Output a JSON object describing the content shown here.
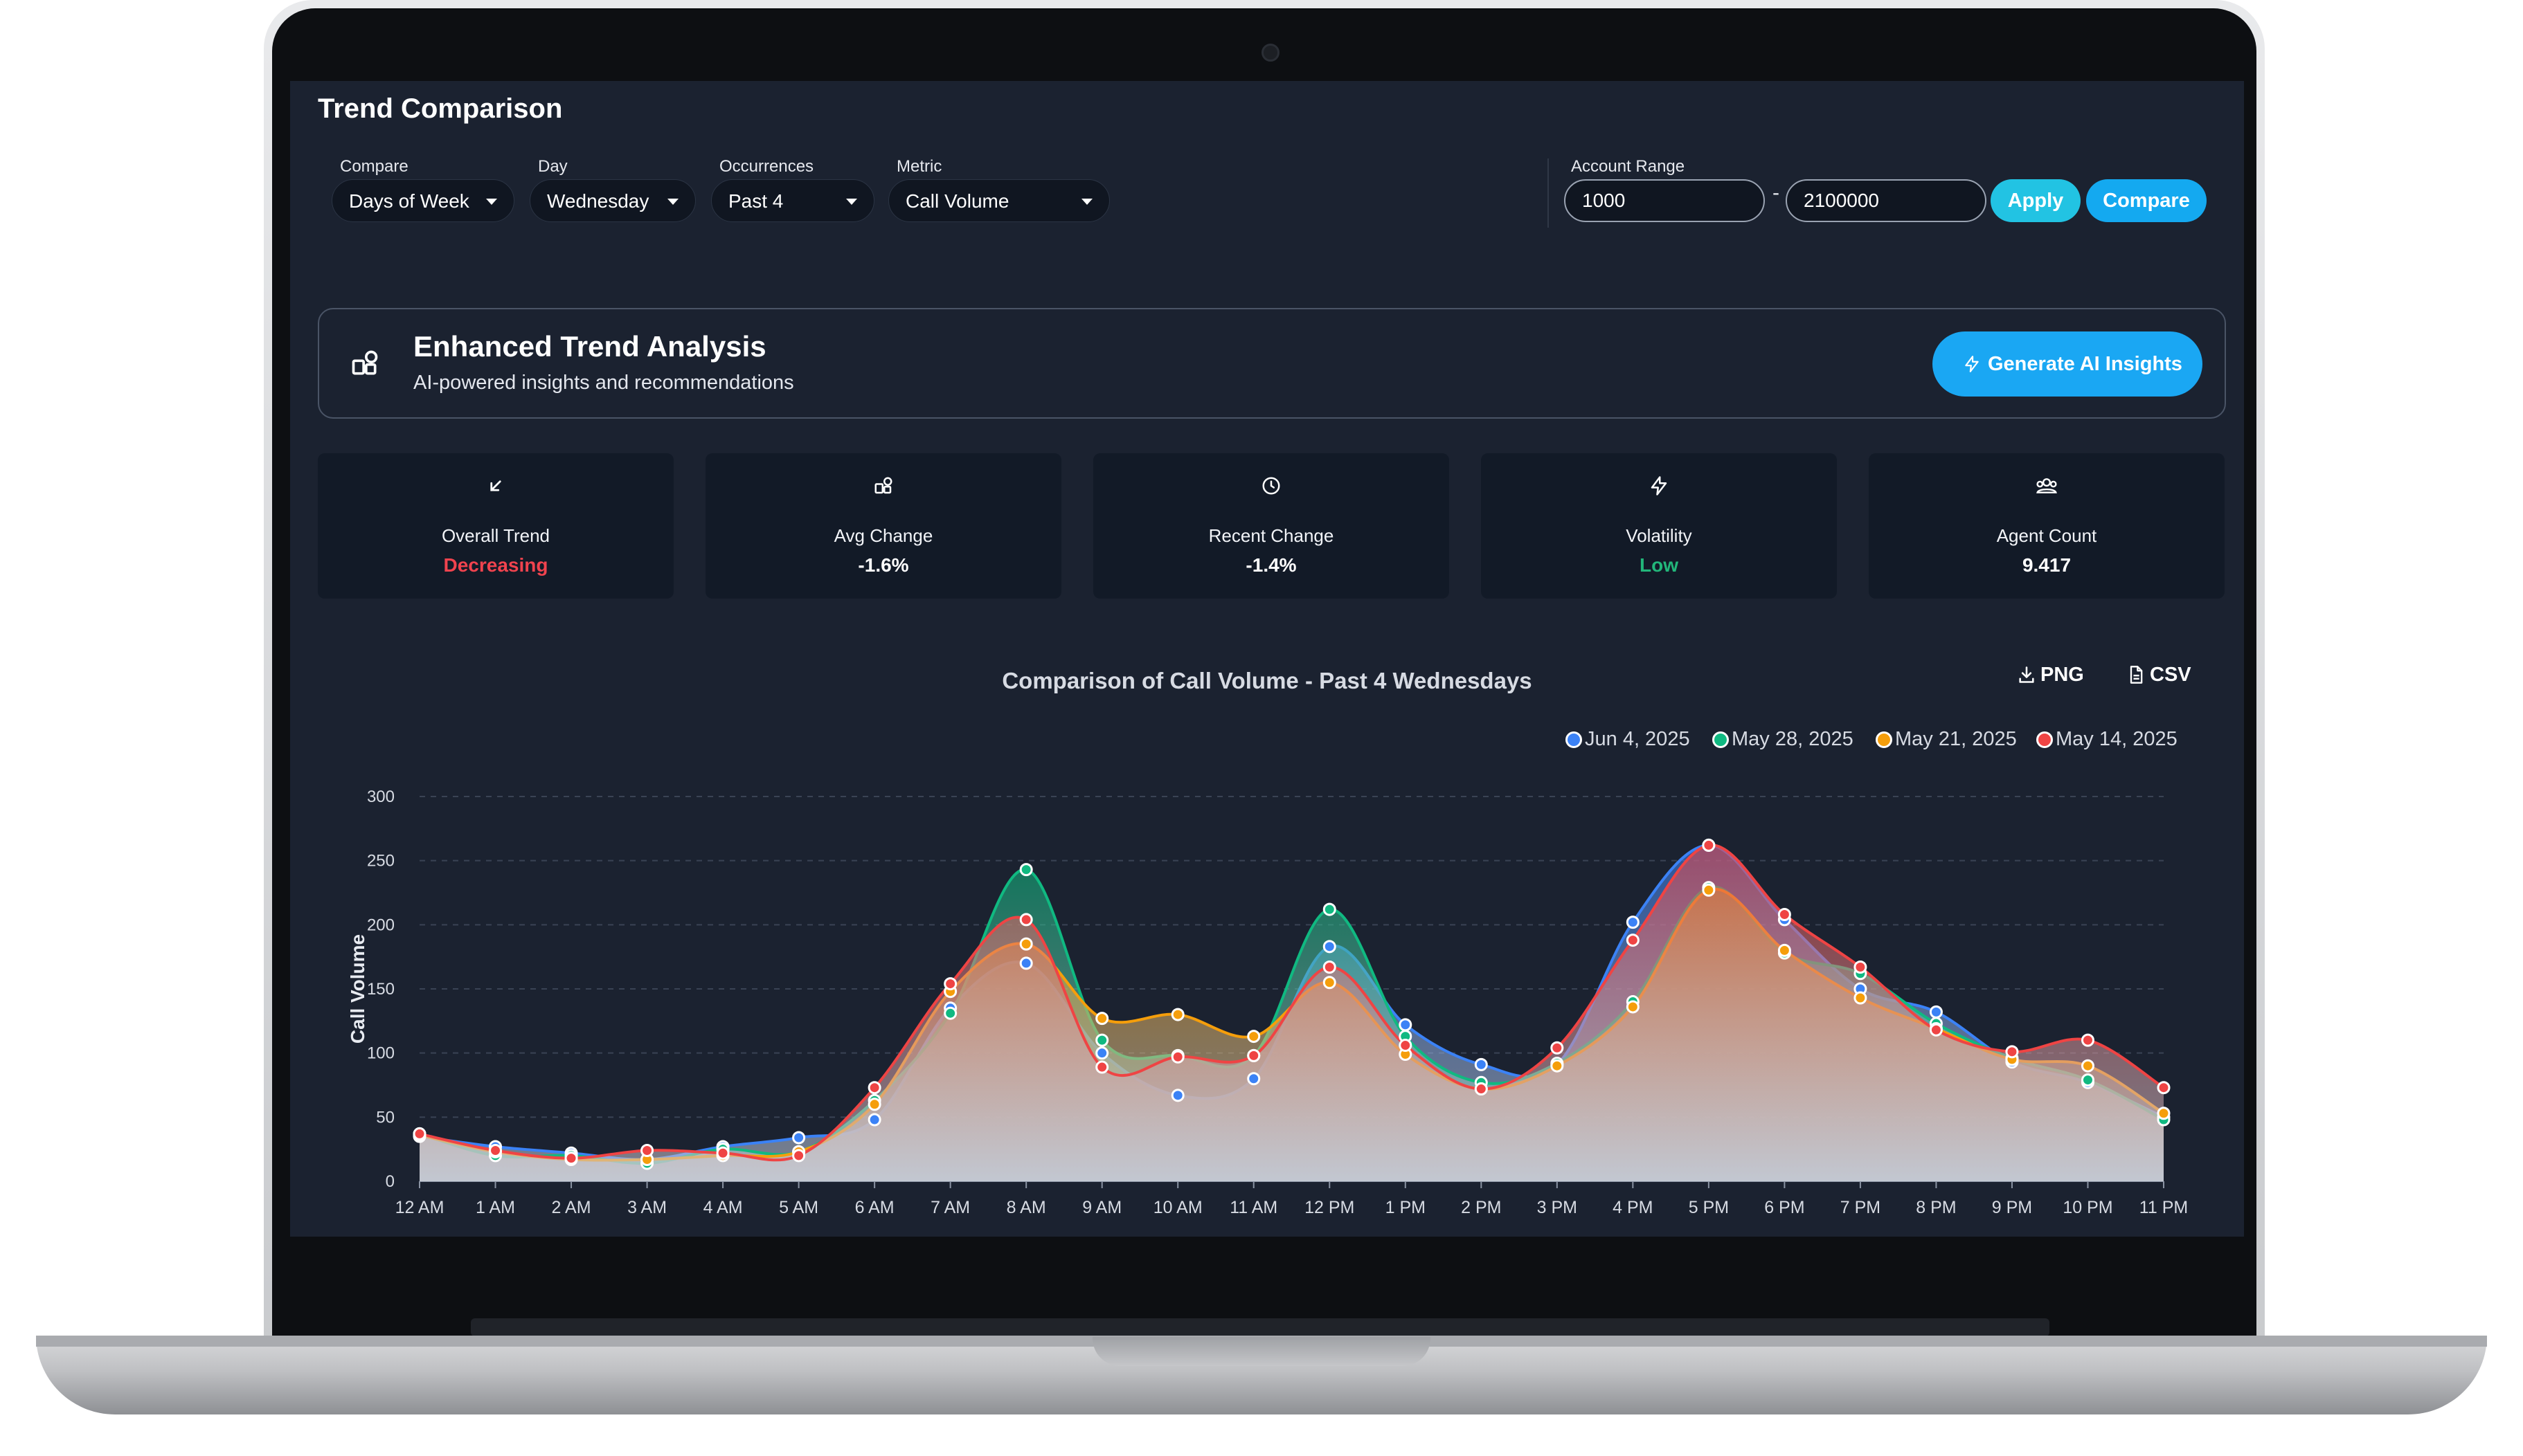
{
  "header": {
    "title": "Trend Comparison"
  },
  "filters": {
    "compare": {
      "label": "Compare",
      "value": "Days of Week"
    },
    "day": {
      "label": "Day",
      "value": "Wednesday"
    },
    "occurrences": {
      "label": "Occurrences",
      "value": "Past 4"
    },
    "metric": {
      "label": "Metric",
      "value": "Call Volume"
    }
  },
  "account_range": {
    "label": "Account Range",
    "min": "1000",
    "separator": "-",
    "max": "2100000"
  },
  "buttons": {
    "apply": "Apply",
    "compare": "Compare"
  },
  "analysis": {
    "title": "Enhanced Trend Analysis",
    "subtitle": "AI-powered insights and recommendations",
    "generate": "Generate AI Insights"
  },
  "stats": [
    {
      "label": "Overall Trend",
      "value": "Decreasing",
      "color": "#f0434e",
      "icon": "arrow-down-left-icon"
    },
    {
      "label": "Avg Change",
      "value": "-1.6%",
      "color": "#ffffff",
      "icon": "shapes-icon"
    },
    {
      "label": "Recent Change",
      "value": "-1.4%",
      "color": "#ffffff",
      "icon": "clock-icon"
    },
    {
      "label": "Volatility",
      "value": "Low",
      "color": "#22b67a",
      "icon": "lightning-icon"
    },
    {
      "label": "Agent Count",
      "value": "9.417",
      "color": "#ffffff",
      "icon": "users-icon"
    }
  ],
  "export": {
    "png": "PNG",
    "csv": "CSV"
  },
  "chart_data": {
    "type": "area",
    "title": "Comparison of Call Volume - Past 4 Wednesdays",
    "ylabel": "Call Volume",
    "xlabel": "",
    "ylim": [
      0,
      300
    ],
    "yticks": [
      "0",
      "50",
      "100",
      "150",
      "200",
      "250",
      "300"
    ],
    "grid": true,
    "legend_position": "top-right",
    "categories": [
      "12 AM",
      "1 AM",
      "2 AM",
      "3 AM",
      "4 AM",
      "5 AM",
      "6 AM",
      "7 AM",
      "8 AM",
      "9 AM",
      "10 AM",
      "11 AM",
      "12 PM",
      "1 PM",
      "2 PM",
      "3 PM",
      "4 PM",
      "5 PM",
      "6 PM",
      "7 PM",
      "8 PM",
      "9 PM",
      "10 PM",
      "11 PM"
    ],
    "series": [
      {
        "name": "Jun 4, 2025",
        "color": "#3b82f6",
        "values": [
          35,
          27,
          22,
          17,
          27,
          34,
          48,
          135,
          170,
          100,
          67,
          80,
          183,
          122,
          91,
          91,
          202,
          262,
          204,
          150,
          132,
          93,
          77,
          50
        ]
      },
      {
        "name": "May 28, 2025",
        "color": "#10b981",
        "values": [
          37,
          20,
          20,
          14,
          25,
          23,
          63,
          131,
          243,
          110,
          98,
          98,
          212,
          113,
          77,
          92,
          140,
          229,
          178,
          162,
          123,
          96,
          79,
          48
        ]
      },
      {
        "name": "May 21, 2025",
        "color": "#f59e0b",
        "values": [
          36,
          23,
          17,
          17,
          20,
          23,
          60,
          148,
          185,
          127,
          130,
          113,
          155,
          99,
          72,
          90,
          136,
          227,
          180,
          143,
          119,
          95,
          90,
          53
        ]
      },
      {
        "name": "May 14, 2025",
        "color": "#ef4444",
        "values": [
          37,
          24,
          18,
          24,
          22,
          20,
          73,
          154,
          204,
          89,
          97,
          98,
          167,
          106,
          72,
          104,
          188,
          262,
          208,
          167,
          118,
          101,
          110,
          73
        ]
      }
    ]
  }
}
